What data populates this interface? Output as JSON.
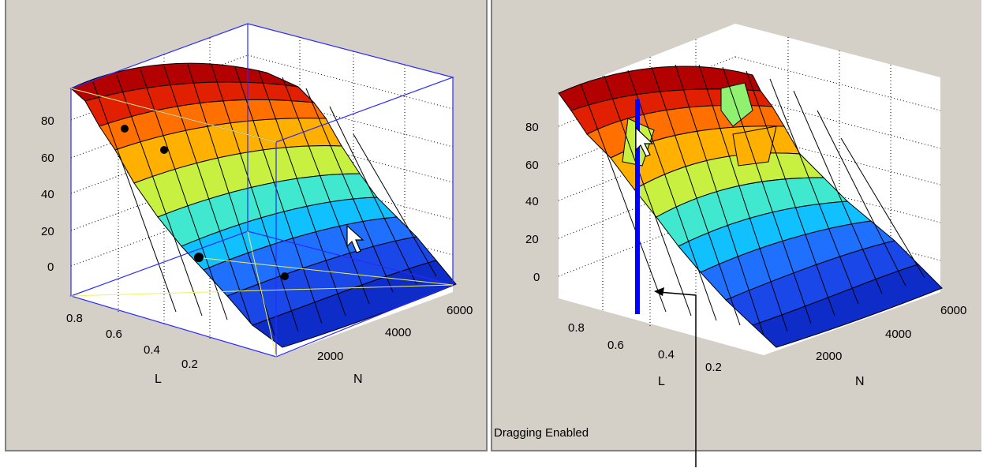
{
  "panels": {
    "left": {
      "axes": {
        "z_ticks": [
          "80",
          "60",
          "40",
          "20",
          "0"
        ],
        "l_ticks": [
          "0.8",
          "0.6",
          "0.4",
          "0.2"
        ],
        "n_ticks": [
          "2000",
          "4000",
          "6000"
        ],
        "x_label": "L",
        "y_label": "N"
      },
      "state": "rotate-mode with selection box and data point markers"
    },
    "right": {
      "axes": {
        "z_ticks": [
          "80",
          "60",
          "40",
          "20",
          "0"
        ],
        "l_ticks": [
          "0.8",
          "0.6",
          "0.4",
          "0.2"
        ],
        "n_ticks": [
          "2000",
          "4000",
          "6000"
        ],
        "x_label": "L",
        "y_label": "N"
      },
      "status_text": "Dragging Enabled"
    }
  },
  "colors": {
    "panel_bg": "#d4d0c8",
    "plot_bg": "#ffffff",
    "selection_box": "#2a2aff",
    "drag_handle": "#0000ff"
  },
  "icons": {
    "cursor": "arrow-cursor-icon"
  }
}
